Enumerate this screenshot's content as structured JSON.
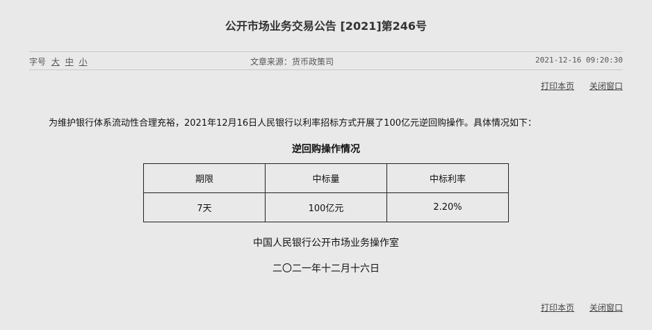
{
  "title": "公开市场业务交易公告 [2021]第246号",
  "meta": {
    "font_label": "字号",
    "font_sizes": [
      "大",
      "中",
      "小"
    ],
    "source": "文章来源：货币政策司",
    "datetime": "2021-12-16 09:20:30"
  },
  "links": {
    "print": "打印本页",
    "close": "关闭窗口"
  },
  "body": {
    "paragraph": "为维护银行体系流动性合理充裕，2021年12月16日人民银行以利率招标方式开展了100亿元逆回购操作。具体情况如下：",
    "table_title": "逆回购操作情况",
    "headers": [
      "期限",
      "中标量",
      "中标利率"
    ],
    "row": [
      "7天",
      "100亿元",
      "2.20%"
    ],
    "signature": "中国人民银行公开市场业务操作室",
    "date": "二〇二一年十二月十六日"
  }
}
